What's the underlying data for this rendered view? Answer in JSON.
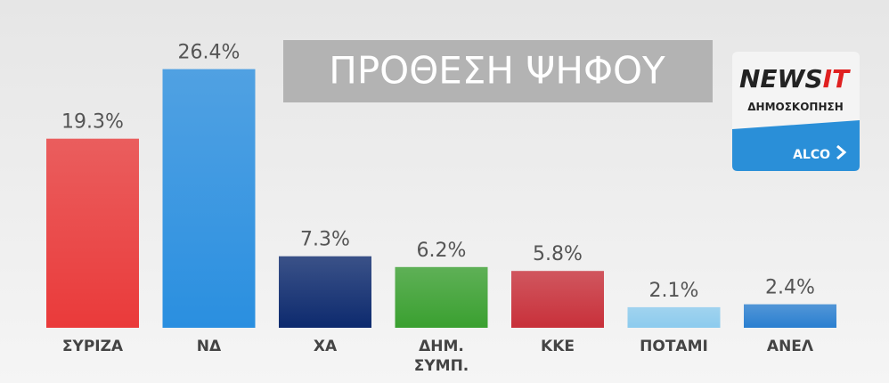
{
  "chart_data": {
    "type": "bar",
    "title": "ΠΡΟΘΕΣΗ ΨΗΦΟΥ",
    "logo": {
      "brand": "NEWS",
      "brand_accent": "IT",
      "subtitle": "ΔΗΜΟΣΚΟΠΗΣΗ",
      "pollster": "ALCO"
    },
    "categories": [
      "ΣΥΡΙΖΑ",
      "ΝΔ",
      "ΧΑ",
      "ΔΗΜ. ΣΥΜΠ.",
      "ΚΚΕ",
      "ΠΟΤΑΜΙ",
      "ΑΝΕΛ"
    ],
    "values": [
      19.3,
      26.4,
      7.3,
      6.2,
      5.8,
      2.1,
      2.4
    ],
    "value_labels": [
      "19.3%",
      "26.4%",
      "7.3%",
      "6.2%",
      "5.8%",
      "2.1%",
      "2.4%"
    ],
    "colors": [
      "#ea3a3a",
      "#2a8fe0",
      "#0d2a6e",
      "#3aa030",
      "#c8303a",
      "#8ccbee",
      "#2a7fd0"
    ],
    "ylim": [
      0,
      28
    ]
  }
}
